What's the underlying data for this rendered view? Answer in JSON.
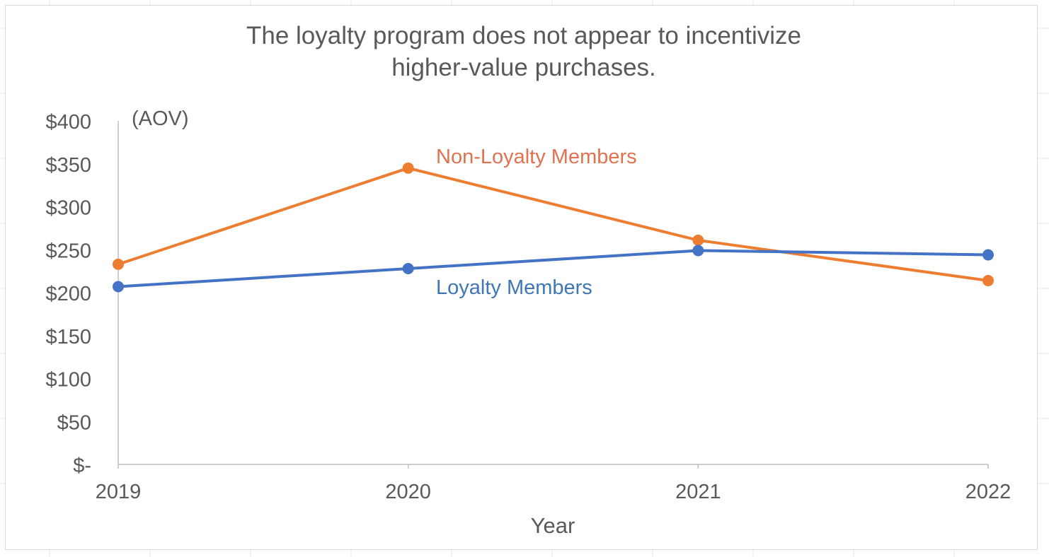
{
  "chart_data": {
    "type": "line",
    "title": "The loyalty program does not appear to incentivize higher-value purchases.",
    "title_lines": [
      "The loyalty program does not appear to incentivize",
      "higher-value purchases."
    ],
    "xlabel": "Year",
    "ylabel": "(AOV)",
    "categories": [
      "2019",
      "2020",
      "2021",
      "2022"
    ],
    "y_ticks": [
      0,
      50,
      100,
      150,
      200,
      250,
      300,
      350,
      400
    ],
    "y_tick_labels": [
      "$-",
      "$50",
      "$100",
      "$150",
      "$200",
      "$250",
      "$300",
      "$350",
      "$400"
    ],
    "ylim": [
      0,
      400
    ],
    "grid": false,
    "legend": "inline labels",
    "series": [
      {
        "name": "Non-Loyalty Members",
        "values": [
          233,
          345,
          261,
          214
        ],
        "color": "#ed7d31"
      },
      {
        "name": "Loyalty Members",
        "values": [
          207,
          228,
          249,
          244
        ],
        "color": "#4472c4"
      }
    ],
    "colors": {
      "axis": "#bfbfbf",
      "text": "#595959",
      "series_label_orange": "#e0724f",
      "series_label_blue": "#3f76b6"
    }
  }
}
